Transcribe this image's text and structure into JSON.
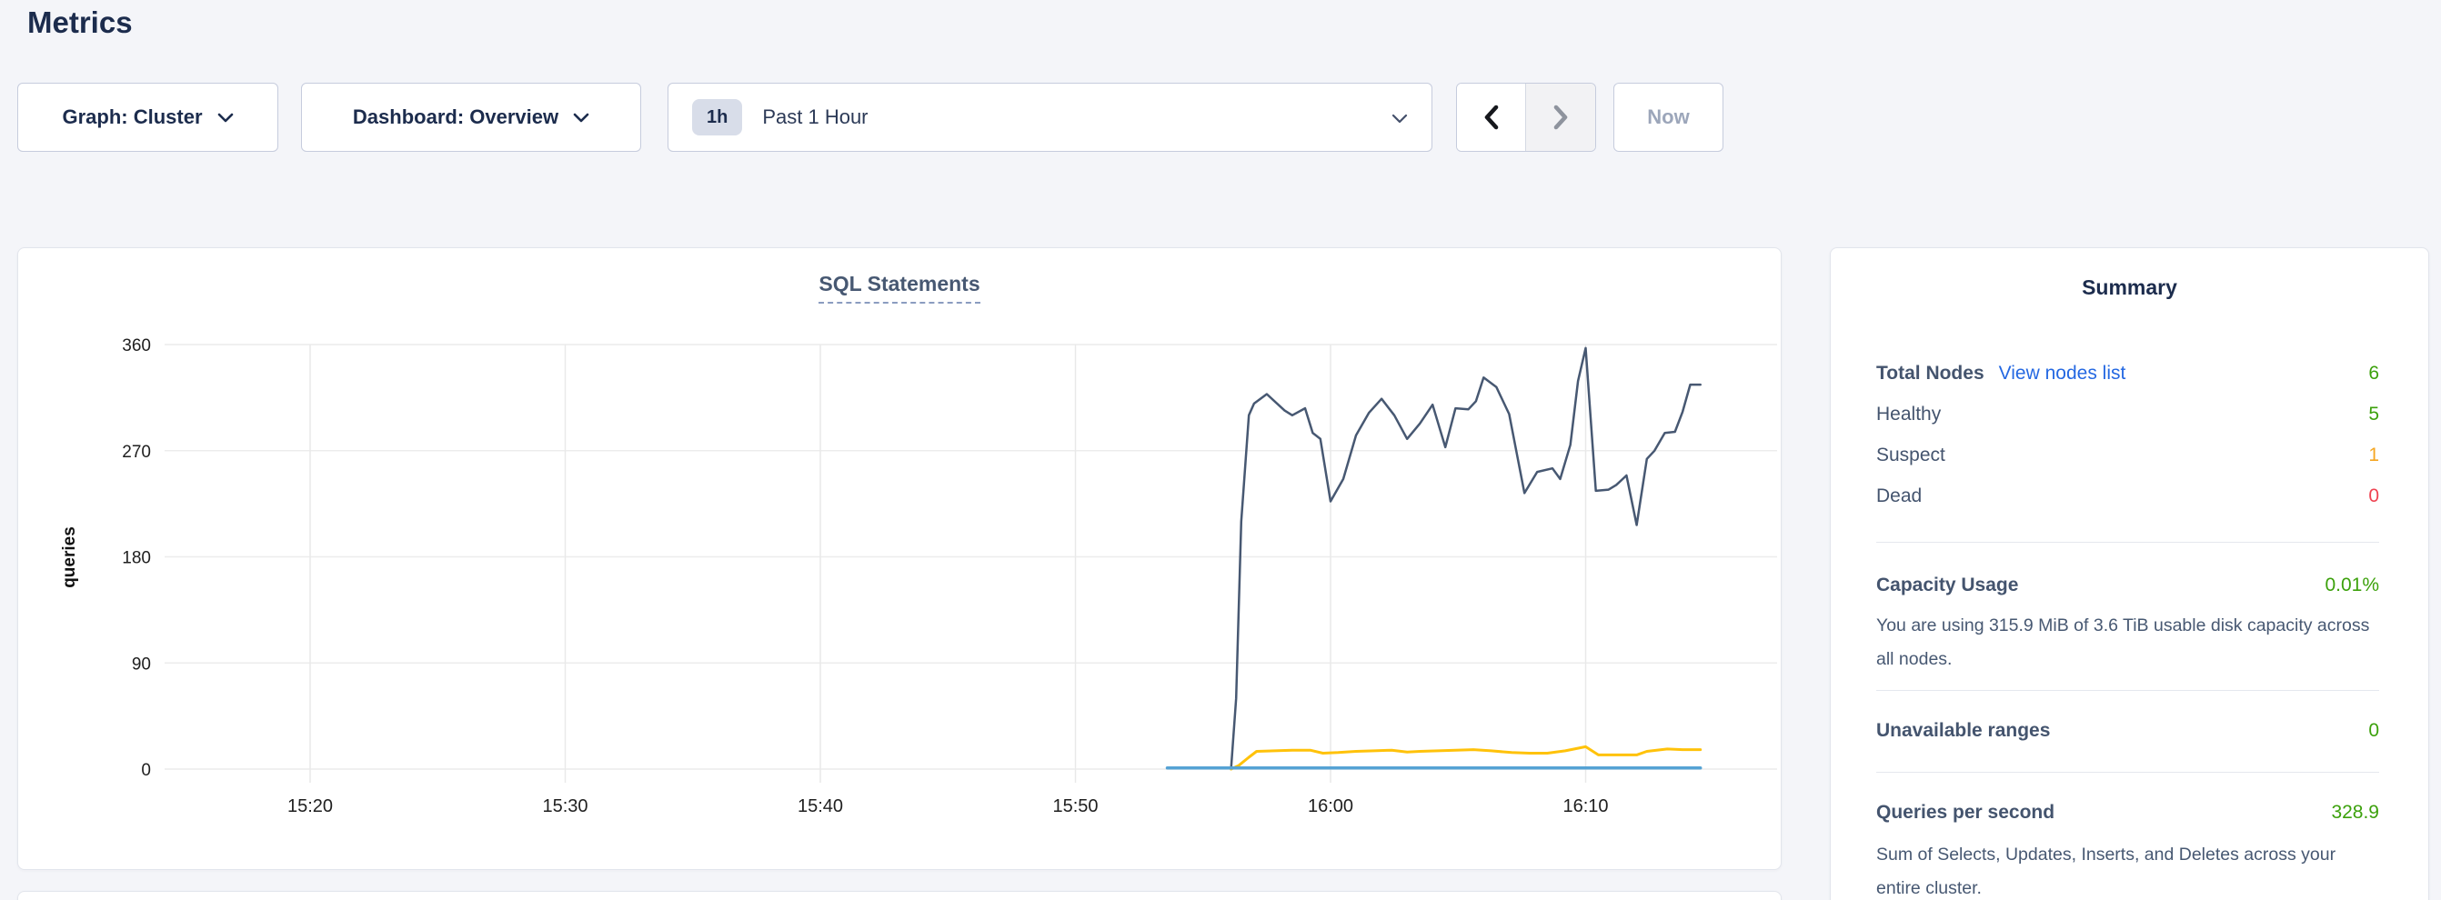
{
  "page": {
    "title": "Metrics"
  },
  "toolbar": {
    "graph_dropdown": "Graph: Cluster",
    "dashboard_dropdown": "Dashboard: Overview",
    "time_badge": "1h",
    "time_label": "Past 1 Hour",
    "now_button": "Now"
  },
  "chart_data": {
    "type": "line",
    "title": "SQL Statements",
    "ylabel": "queries",
    "xlabel": "",
    "ylim": [
      0,
      360
    ],
    "y_ticks": [
      0,
      90,
      180,
      270,
      360
    ],
    "x_tick_labels": [
      "15:20",
      "15:30",
      "15:40",
      "15:50",
      "16:00",
      "16:10"
    ],
    "x_tick_minutes": [
      0,
      10,
      20,
      30,
      40,
      50
    ],
    "x_unit": "minutes since 15:20",
    "xlim_minutes": [
      -5.7,
      57.5
    ],
    "grid": true,
    "legend_position": "none",
    "series": [
      {
        "name": "line-1",
        "color": "#475872",
        "points": [
          [
            36.1,
            0
          ],
          [
            36.3,
            60
          ],
          [
            36.5,
            210
          ],
          [
            36.8,
            300
          ],
          [
            37.0,
            310
          ],
          [
            37.5,
            318
          ],
          [
            38.2,
            304
          ],
          [
            38.5,
            300
          ],
          [
            39.0,
            306
          ],
          [
            39.3,
            285
          ],
          [
            39.6,
            280
          ],
          [
            40.0,
            227
          ],
          [
            40.5,
            246
          ],
          [
            41.0,
            283
          ],
          [
            41.5,
            302
          ],
          [
            42.0,
            314
          ],
          [
            42.5,
            300
          ],
          [
            43.0,
            280
          ],
          [
            43.5,
            293
          ],
          [
            44.0,
            309
          ],
          [
            44.5,
            273
          ],
          [
            44.9,
            306
          ],
          [
            45.4,
            305
          ],
          [
            45.7,
            312
          ],
          [
            46.0,
            332
          ],
          [
            46.5,
            324
          ],
          [
            47.0,
            301
          ],
          [
            47.6,
            234
          ],
          [
            48.1,
            252
          ],
          [
            48.7,
            255
          ],
          [
            49.0,
            246
          ],
          [
            49.4,
            275
          ],
          [
            49.7,
            329
          ],
          [
            50.0,
            357
          ],
          [
            50.4,
            236
          ],
          [
            50.9,
            237
          ],
          [
            51.2,
            241
          ],
          [
            51.6,
            249
          ],
          [
            52.0,
            207
          ],
          [
            52.4,
            263
          ],
          [
            52.7,
            270
          ],
          [
            53.1,
            285
          ],
          [
            53.5,
            286
          ],
          [
            53.8,
            303
          ],
          [
            54.1,
            326
          ],
          [
            54.5,
            326
          ]
        ]
      },
      {
        "name": "line-2",
        "color": "#ffc20a",
        "points": [
          [
            36.1,
            0
          ],
          [
            36.4,
            3
          ],
          [
            36.8,
            10
          ],
          [
            37.1,
            15
          ],
          [
            37.8,
            15.5
          ],
          [
            38.5,
            16
          ],
          [
            39.2,
            16
          ],
          [
            39.7,
            13.5
          ],
          [
            40.3,
            14
          ],
          [
            41.0,
            15
          ],
          [
            41.7,
            15.5
          ],
          [
            42.4,
            16
          ],
          [
            43.0,
            14.5
          ],
          [
            43.5,
            15
          ],
          [
            44.2,
            15.5
          ],
          [
            44.9,
            16
          ],
          [
            45.6,
            16.5
          ],
          [
            46.3,
            15.5
          ],
          [
            47.1,
            14
          ],
          [
            47.8,
            13.5
          ],
          [
            48.5,
            13.5
          ],
          [
            49.2,
            15.5
          ],
          [
            50.0,
            19
          ],
          [
            50.5,
            12
          ],
          [
            51.3,
            12
          ],
          [
            52.0,
            12
          ],
          [
            52.4,
            15
          ],
          [
            53.2,
            17
          ],
          [
            53.8,
            16.5
          ],
          [
            54.5,
            16.5
          ]
        ]
      },
      {
        "name": "line-3",
        "color": "#55a2d4",
        "points": [
          [
            33.6,
            1
          ],
          [
            54.5,
            1
          ]
        ]
      }
    ]
  },
  "summary": {
    "title": "Summary",
    "nodes": {
      "label": "Total Nodes",
      "link": "View nodes list",
      "value": "6",
      "rows": [
        {
          "label": "Healthy",
          "value": "5",
          "color": "#3ca10c"
        },
        {
          "label": "Suspect",
          "value": "1",
          "color": "#f5a623"
        },
        {
          "label": "Dead",
          "value": "0",
          "color": "#ef4352"
        }
      ]
    },
    "stats": [
      {
        "label": "Capacity Usage",
        "value": "0.01%",
        "description": "You are using 315.9 MiB of 3.6 TiB usable disk capacity across all nodes."
      },
      {
        "label": "Unavailable ranges",
        "value": "0",
        "description": ""
      },
      {
        "label": "Queries per second",
        "value": "328.9",
        "description": "Sum of Selects, Updates, Inserts, and Deletes across your entire cluster."
      }
    ]
  },
  "colors": {
    "page_background": "#f4f5f9",
    "navy_text": "#1c2c4d",
    "slate_text": "#475872",
    "link_blue": "#2468e2",
    "healthy_green": "#3ca10c",
    "suspect_orange": "#f5a623",
    "dead_red": "#ef4352",
    "disabled_text": "#9ca6ba",
    "grid_line": "#ececec",
    "series_dark": "#475872",
    "series_yellow": "#ffc20a",
    "series_blue": "#55a2d4"
  }
}
